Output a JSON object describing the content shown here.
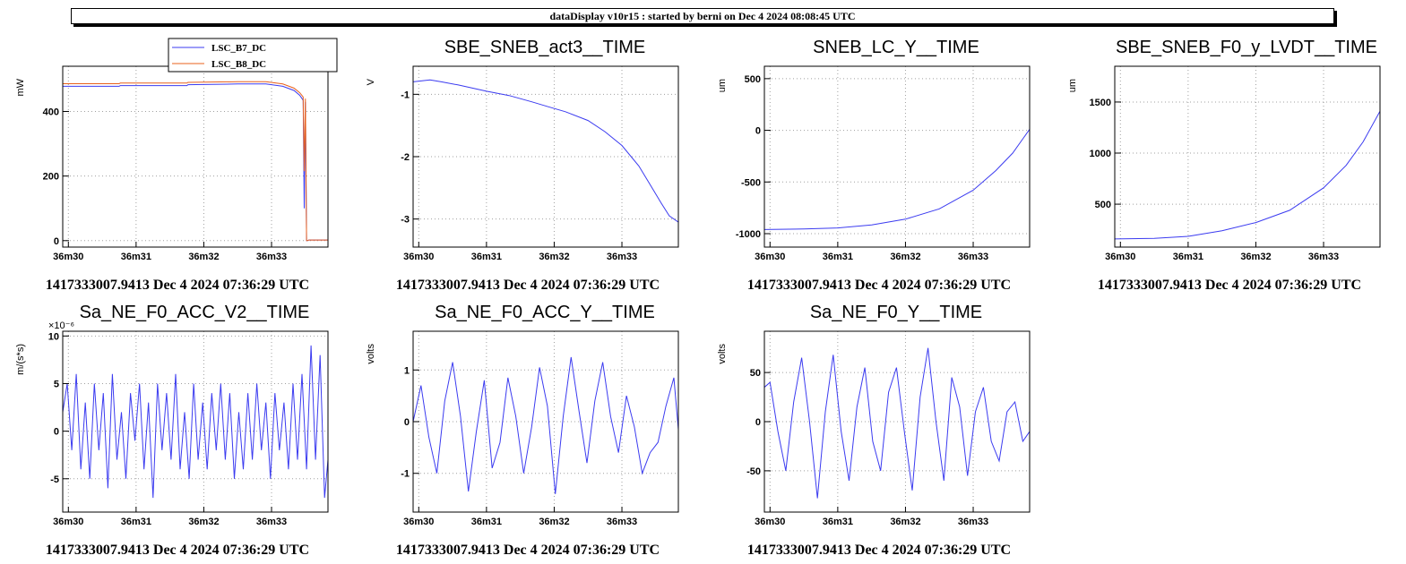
{
  "header": {
    "title": "dataDisplay v10r15 : started by berni on Dec  4 2024 08:08:45 UTC"
  },
  "colors": {
    "trace": "#3b3bf0",
    "trace2": "#e8601c",
    "grid": "#a0a0a0",
    "axis": "#000000"
  },
  "chart_data": [
    {
      "type": "line",
      "title": "",
      "ylabel": "mW",
      "xlabel": "",
      "footer": "1417333007.9413 Dec 4 2024 07:36:29 UTC",
      "x_ticks": [
        "36m30",
        "36m31",
        "36m32",
        "36m33"
      ],
      "x_tick_values": [
        0,
        60,
        120,
        180
      ],
      "xlim": [
        -5,
        230
      ],
      "ylim": [
        -20,
        540
      ],
      "y_ticks": [
        0,
        200,
        400
      ],
      "y_tick_labels": [
        "0",
        "200",
        "400"
      ],
      "legend": [
        "LSC_B7_DC",
        "LSC_B8_DC"
      ],
      "series": [
        {
          "name": "LSC_B7_DC",
          "color": "#3b3bf0",
          "x": [
            -5,
            45,
            46,
            105,
            106,
            150,
            175,
            190,
            200,
            205,
            208,
            209,
            210,
            211,
            212,
            213,
            230
          ],
          "y": [
            478,
            478,
            480,
            480,
            483,
            485,
            485,
            478,
            465,
            450,
            435,
            100,
            430,
            0,
            0,
            2,
            2
          ]
        },
        {
          "name": "LSC_B8_DC",
          "color": "#e8601c",
          "x": [
            -5,
            45,
            46,
            105,
            106,
            150,
            175,
            190,
            200,
            205,
            208,
            209,
            210,
            211,
            212,
            213,
            230
          ],
          "y": [
            486,
            486,
            488,
            488,
            490,
            492,
            492,
            485,
            472,
            458,
            445,
            215,
            440,
            0,
            0,
            2,
            2
          ]
        }
      ]
    },
    {
      "type": "line",
      "title": "SBE_SNEB_act3__TIME",
      "ylabel": "V",
      "xlabel": "",
      "footer": "1417333007.9413 Dec 4 2024 07:36:29 UTC",
      "x_ticks": [
        "36m30",
        "36m31",
        "36m32",
        "36m33"
      ],
      "x_tick_values": [
        0,
        60,
        120,
        180
      ],
      "xlim": [
        -5,
        230
      ],
      "ylim": [
        -3.45,
        -0.55
      ],
      "y_ticks": [
        -3,
        -2,
        -1
      ],
      "y_tick_labels": [
        "-3",
        "-2",
        "-1"
      ],
      "series": [
        {
          "name": "SBE_SNEB_act3",
          "color": "#3b3bf0",
          "x": [
            -5,
            10,
            20,
            35,
            60,
            80,
            100,
            115,
            130,
            150,
            165,
            180,
            195,
            205,
            215,
            222,
            230
          ],
          "y": [
            -0.8,
            -0.77,
            -0.8,
            -0.85,
            -0.95,
            -1.02,
            -1.12,
            -1.2,
            -1.28,
            -1.42,
            -1.6,
            -1.82,
            -2.15,
            -2.45,
            -2.75,
            -2.95,
            -3.05
          ]
        }
      ]
    },
    {
      "type": "line",
      "title": "SNEB_LC_Y__TIME",
      "ylabel": "um",
      "xlabel": "",
      "footer": "1417333007.9413 Dec 4 2024 07:36:29 UTC",
      "x_ticks": [
        "36m30",
        "36m31",
        "36m32",
        "36m33"
      ],
      "x_tick_values": [
        0,
        60,
        120,
        180
      ],
      "xlim": [
        -5,
        230
      ],
      "ylim": [
        -1130,
        620
      ],
      "y_ticks": [
        -1000,
        -500,
        0,
        500
      ],
      "y_tick_labels": [
        "-1000",
        "-500",
        "0",
        "500"
      ],
      "series": [
        {
          "name": "SNEB_LC_Y",
          "color": "#3b3bf0",
          "x": [
            -5,
            30,
            60,
            90,
            120,
            150,
            180,
            200,
            215,
            230
          ],
          "y": [
            -960,
            -955,
            -945,
            -915,
            -860,
            -760,
            -580,
            -390,
            -220,
            10
          ]
        }
      ]
    },
    {
      "type": "line",
      "title": "SBE_SNEB_F0_y_LVDT__TIME",
      "ylabel": "um",
      "xlabel": "",
      "footer": "1417333007.9413 Dec 4 2024 07:36:29 UTC",
      "x_ticks": [
        "36m30",
        "36m31",
        "36m32",
        "36m33"
      ],
      "x_tick_values": [
        0,
        60,
        120,
        180
      ],
      "xlim": [
        -5,
        230
      ],
      "ylim": [
        80,
        1850
      ],
      "y_ticks": [
        500,
        1000,
        1500
      ],
      "y_tick_labels": [
        "500",
        "1000",
        "1500"
      ],
      "series": [
        {
          "name": "SBE_SNEB_F0_y_LVDT",
          "color": "#3b3bf0",
          "x": [
            -5,
            30,
            60,
            90,
            120,
            150,
            180,
            200,
            215,
            230
          ],
          "y": [
            160,
            165,
            185,
            240,
            320,
            440,
            660,
            880,
            1110,
            1410
          ]
        }
      ]
    },
    {
      "type": "line",
      "title": "Sa_NE_F0_ACC_V2__TIME",
      "ylabel": "m/(s*s)",
      "xlabel": "",
      "exponent": "×10⁻⁶",
      "footer": "1417333007.9413 Dec 4 2024 07:36:29 UTC",
      "x_ticks": [
        "36m30",
        "36m31",
        "36m32",
        "36m33"
      ],
      "x_tick_values": [
        0,
        60,
        120,
        180
      ],
      "xlim": [
        -5,
        230
      ],
      "ylim": [
        -8.5,
        10.5
      ],
      "y_ticks": [
        -5,
        0,
        5,
        10
      ],
      "y_tick_labels": [
        "-5",
        "0",
        "5",
        "10"
      ],
      "series": [
        {
          "name": "Sa_NE_F0_ACC_V2",
          "color": "#3b3bf0",
          "x": [
            -5,
            -1,
            3,
            7,
            11,
            15,
            19,
            23,
            27,
            31,
            35,
            39,
            43,
            47,
            51,
            55,
            59,
            63,
            67,
            71,
            75,
            79,
            83,
            87,
            91,
            95,
            99,
            103,
            107,
            111,
            115,
            119,
            123,
            127,
            131,
            135,
            139,
            143,
            147,
            151,
            155,
            159,
            163,
            167,
            171,
            175,
            179,
            183,
            187,
            191,
            195,
            199,
            203,
            207,
            211,
            215,
            219,
            223,
            227,
            230
          ],
          "y": [
            2,
            5,
            -2,
            6,
            -4,
            3,
            -5,
            5,
            -2,
            4,
            -6,
            6,
            -3,
            2,
            -5,
            4,
            -1,
            5,
            -4,
            3,
            -7,
            5,
            -2,
            4,
            -3,
            6,
            -4,
            2,
            -5,
            5,
            -3,
            3,
            -4,
            4,
            -2,
            5,
            -3,
            4,
            -5,
            2,
            -4,
            4,
            -3,
            5,
            -2,
            3,
            -5,
            4,
            -2,
            3,
            -4,
            5,
            -3,
            6,
            -4,
            9,
            -3,
            8,
            -7,
            -3
          ]
        }
      ]
    },
    {
      "type": "line",
      "title": "Sa_NE_F0_ACC_Y__TIME",
      "ylabel": "volts",
      "xlabel": "",
      "footer": "1417333007.9413 Dec 4 2024 07:36:29 UTC",
      "x_ticks": [
        "36m30",
        "36m31",
        "36m32",
        "36m33"
      ],
      "x_tick_values": [
        0,
        60,
        120,
        180
      ],
      "xlim": [
        -5,
        230
      ],
      "ylim": [
        -1.75,
        1.75
      ],
      "y_ticks": [
        -1,
        0,
        1
      ],
      "y_tick_labels": [
        "-1",
        "0",
        "1"
      ],
      "series": [
        {
          "name": "Sa_NE_F0_ACC_Y",
          "color": "#3b3bf0",
          "x": [
            -5,
            2,
            9,
            16,
            23,
            30,
            37,
            44,
            51,
            58,
            65,
            72,
            79,
            86,
            93,
            100,
            107,
            114,
            121,
            128,
            135,
            142,
            149,
            156,
            163,
            170,
            177,
            184,
            191,
            198,
            205,
            212,
            219,
            226,
            230
          ],
          "y": [
            0,
            0.7,
            -0.3,
            -1.0,
            0.4,
            1.15,
            0.1,
            -1.35,
            -0.2,
            0.8,
            -0.9,
            -0.4,
            0.85,
            0.1,
            -1.0,
            -0.1,
            1.05,
            0.3,
            -1.4,
            0.1,
            1.25,
            0.2,
            -0.8,
            0.4,
            1.15,
            0.1,
            -0.6,
            0.5,
            -0.1,
            -1.0,
            -0.6,
            -0.4,
            0.3,
            0.85,
            -0.15
          ]
        }
      ]
    },
    {
      "type": "line",
      "title": "Sa_NE_F0_Y__TIME",
      "ylabel": "volts",
      "xlabel": "",
      "footer": "1417333007.9413 Dec 4 2024 07:36:29 UTC",
      "x_ticks": [
        "36m30",
        "36m31",
        "36m32",
        "36m33"
      ],
      "x_tick_values": [
        0,
        60,
        120,
        180
      ],
      "xlim": [
        -5,
        230
      ],
      "ylim": [
        -92,
        92
      ],
      "y_ticks": [
        -50,
        0,
        50
      ],
      "y_tick_labels": [
        "-50",
        "0",
        "50"
      ],
      "series": [
        {
          "name": "Sa_NE_F0_Y",
          "color": "#3b3bf0",
          "x": [
            -5,
            0,
            7,
            14,
            21,
            28,
            35,
            42,
            49,
            56,
            63,
            70,
            77,
            84,
            91,
            98,
            105,
            112,
            119,
            126,
            133,
            140,
            147,
            154,
            161,
            168,
            175,
            182,
            189,
            196,
            203,
            210,
            217,
            224,
            230
          ],
          "y": [
            35,
            40,
            -10,
            -50,
            20,
            65,
            0,
            -78,
            10,
            68,
            -10,
            -60,
            15,
            55,
            -20,
            -50,
            30,
            55,
            -10,
            -70,
            25,
            75,
            0,
            -60,
            45,
            15,
            -55,
            10,
            35,
            -20,
            -40,
            10,
            20,
            -20,
            -10
          ]
        }
      ]
    }
  ]
}
